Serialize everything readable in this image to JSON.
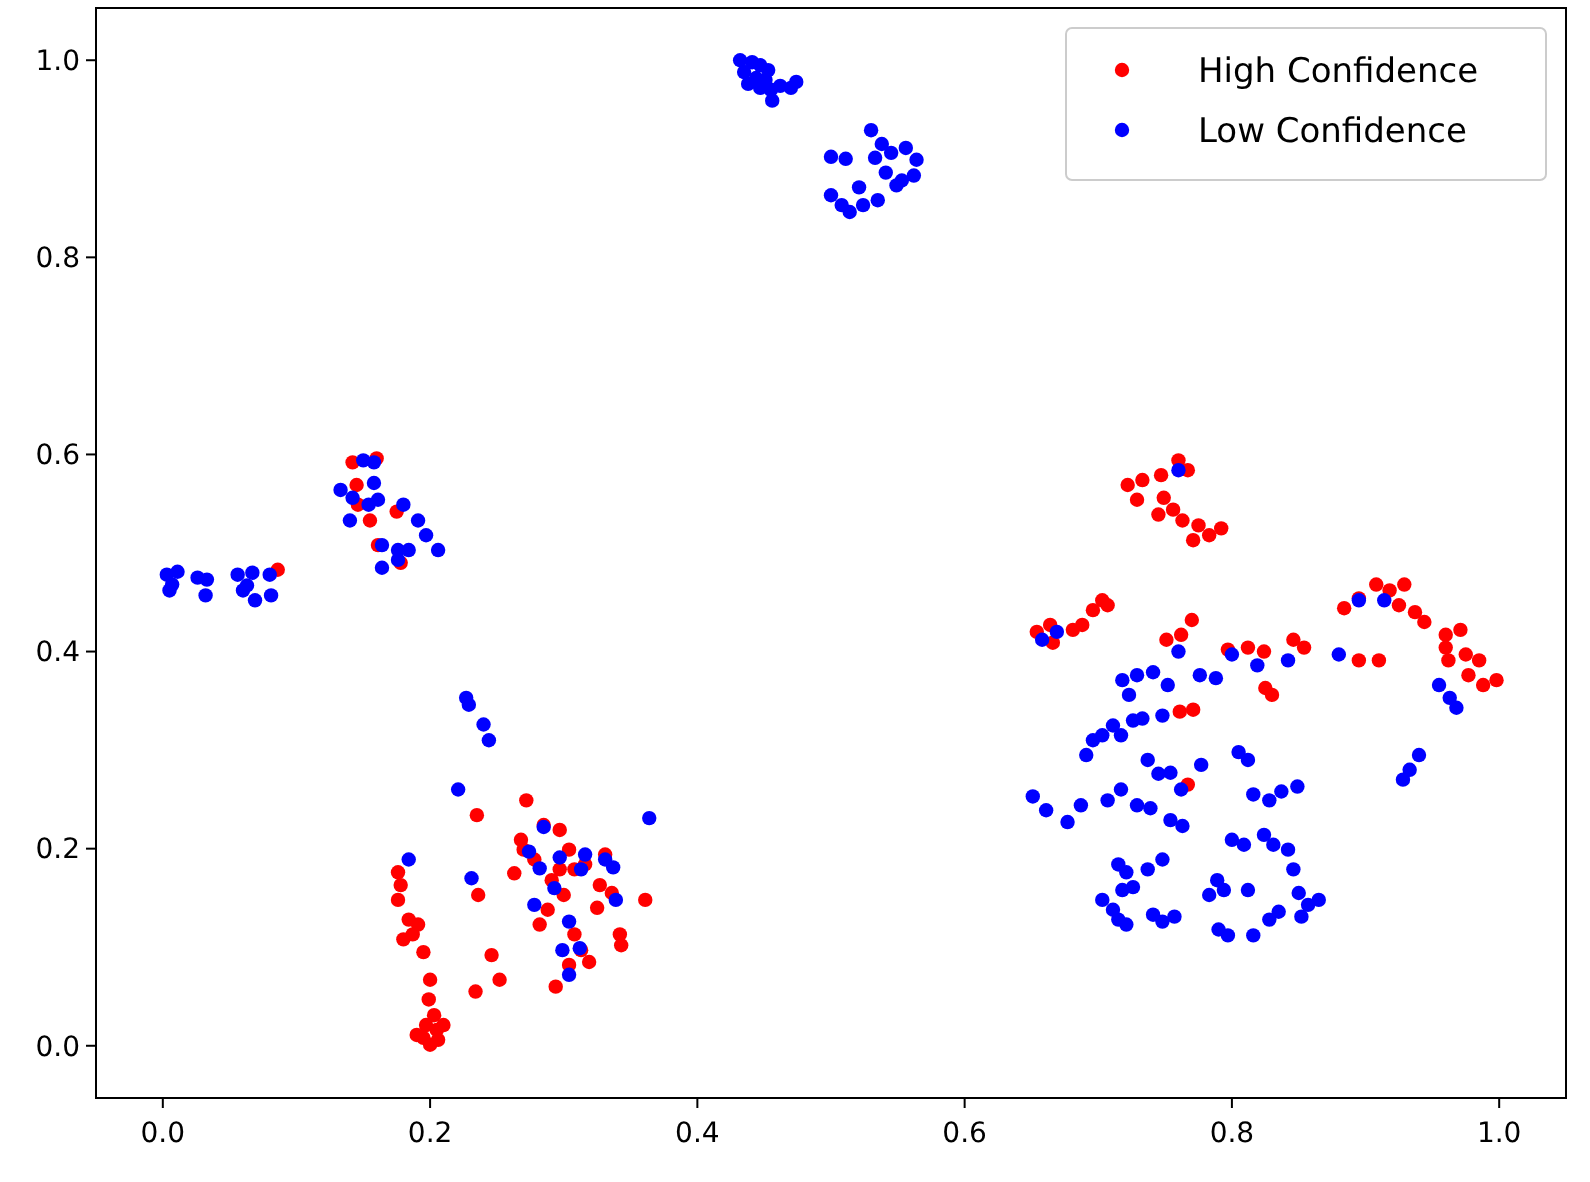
{
  "chart_data": {
    "type": "scatter",
    "xlim": [
      -0.05,
      1.05
    ],
    "ylim": [
      -0.053,
      1.053
    ],
    "xticks": [
      {
        "value": 0,
        "label": "0.0"
      },
      {
        "value": 0.2,
        "label": "0.2"
      },
      {
        "value": 0.4,
        "label": "0.4"
      },
      {
        "value": 0.6,
        "label": "0.6"
      },
      {
        "value": 0.8,
        "label": "0.8"
      },
      {
        "value": 1,
        "label": "1.0"
      }
    ],
    "yticks": [
      {
        "value": 0,
        "label": "0.0"
      },
      {
        "value": 0.2,
        "label": "0.2"
      },
      {
        "value": 0.4,
        "label": "0.4"
      },
      {
        "value": 0.6,
        "label": "0.6"
      },
      {
        "value": 0.8,
        "label": "0.8"
      },
      {
        "value": 1,
        "label": "1.0"
      }
    ],
    "grid": false,
    "legend": "top right",
    "marker": "circle",
    "series": [
      {
        "name": "High Confidence",
        "color": "#ff0000",
        "x": [
          0.142,
          0.16,
          0.145,
          0.146,
          0.161,
          0.178,
          0.155,
          0.175,
          0.086,
          0.176,
          0.178,
          0.176,
          0.184,
          0.191,
          0.18,
          0.187,
          0.195,
          0.2,
          0.199,
          0.203,
          0.197,
          0.205,
          0.195,
          0.206,
          0.2,
          0.19,
          0.21,
          0.235,
          0.236,
          0.246,
          0.252,
          0.234,
          0.272,
          0.263,
          0.268,
          0.285,
          0.297,
          0.304,
          0.291,
          0.288,
          0.282,
          0.3,
          0.308,
          0.316,
          0.331,
          0.327,
          0.336,
          0.325,
          0.308,
          0.313,
          0.319,
          0.304,
          0.294,
          0.342,
          0.343,
          0.361,
          0.297,
          0.278,
          0.27,
          0.722,
          0.733,
          0.729,
          0.747,
          0.76,
          0.767,
          0.749,
          0.756,
          0.745,
          0.763,
          0.775,
          0.771,
          0.783,
          0.792,
          0.654,
          0.664,
          0.666,
          0.681,
          0.688,
          0.696,
          0.703,
          0.707,
          0.751,
          0.762,
          0.77,
          0.771,
          0.761,
          0.767,
          0.797,
          0.812,
          0.824,
          0.825,
          0.83,
          0.846,
          0.854,
          0.884,
          0.895,
          0.908,
          0.918,
          0.929,
          0.925,
          0.937,
          0.944,
          0.895,
          0.91,
          0.96,
          0.971,
          0.962,
          0.975,
          0.985,
          0.977,
          0.988,
          0.998,
          0.96
        ],
        "values": [
          0.592,
          0.596,
          0.569,
          0.549,
          0.508,
          0.49,
          0.533,
          0.542,
          0.483,
          0.176,
          0.163,
          0.148,
          0.128,
          0.123,
          0.108,
          0.113,
          0.095,
          0.067,
          0.047,
          0.031,
          0.021,
          0.016,
          0.008,
          0.006,
          0.001,
          0.011,
          0.021,
          0.234,
          0.153,
          0.092,
          0.067,
          0.055,
          0.249,
          0.175,
          0.209,
          0.224,
          0.219,
          0.199,
          0.168,
          0.138,
          0.123,
          0.153,
          0.179,
          0.184,
          0.194,
          0.163,
          0.155,
          0.14,
          0.113,
          0.097,
          0.085,
          0.082,
          0.06,
          0.113,
          0.102,
          0.148,
          0.179,
          0.189,
          0.199,
          0.569,
          0.574,
          0.554,
          0.579,
          0.594,
          0.584,
          0.556,
          0.544,
          0.539,
          0.533,
          0.528,
          0.513,
          0.518,
          0.525,
          0.42,
          0.427,
          0.409,
          0.422,
          0.427,
          0.442,
          0.452,
          0.447,
          0.412,
          0.417,
          0.432,
          0.341,
          0.339,
          0.265,
          0.402,
          0.404,
          0.4,
          0.363,
          0.356,
          0.412,
          0.404,
          0.444,
          0.454,
          0.468,
          0.462,
          0.468,
          0.447,
          0.44,
          0.43,
          0.391,
          0.391,
          0.417,
          0.422,
          0.391,
          0.397,
          0.391,
          0.376,
          0.366,
          0.371,
          0.404
        ]
      },
      {
        "name": "Low Confidence",
        "color": "#0000ff",
        "x": [
          0.003,
          0.007,
          0.011,
          0.005,
          0.026,
          0.033,
          0.032,
          0.056,
          0.06,
          0.067,
          0.069,
          0.063,
          0.08,
          0.081,
          0.15,
          0.158,
          0.133,
          0.142,
          0.14,
          0.158,
          0.154,
          0.161,
          0.18,
          0.164,
          0.176,
          0.184,
          0.164,
          0.191,
          0.197,
          0.206,
          0.176,
          0.432,
          0.441,
          0.447,
          0.435,
          0.444,
          0.451,
          0.455,
          0.462,
          0.47,
          0.474,
          0.447,
          0.456,
          0.438,
          0.453,
          0.5,
          0.511,
          0.5,
          0.508,
          0.514,
          0.521,
          0.524,
          0.53,
          0.538,
          0.533,
          0.545,
          0.541,
          0.553,
          0.556,
          0.564,
          0.562,
          0.535,
          0.549,
          0.184,
          0.229,
          0.227,
          0.24,
          0.244,
          0.221,
          0.231,
          0.274,
          0.282,
          0.285,
          0.293,
          0.297,
          0.304,
          0.316,
          0.313,
          0.331,
          0.337,
          0.339,
          0.299,
          0.312,
          0.304,
          0.278,
          0.364,
          0.658,
          0.669,
          0.76,
          0.76,
          0.8,
          0.819,
          0.842,
          0.88,
          0.895,
          0.914,
          0.955,
          0.963,
          0.968,
          0.94,
          0.933,
          0.928,
          0.718,
          0.729,
          0.741,
          0.752,
          0.723,
          0.776,
          0.788,
          0.691,
          0.696,
          0.703,
          0.711,
          0.717,
          0.726,
          0.733,
          0.748,
          0.737,
          0.745,
          0.754,
          0.762,
          0.777,
          0.805,
          0.812,
          0.651,
          0.661,
          0.677,
          0.687,
          0.707,
          0.717,
          0.729,
          0.739,
          0.754,
          0.763,
          0.8,
          0.809,
          0.824,
          0.831,
          0.842,
          0.816,
          0.828,
          0.837,
          0.849,
          0.715,
          0.721,
          0.718,
          0.726,
          0.703,
          0.711,
          0.715,
          0.721,
          0.737,
          0.748,
          0.741,
          0.748,
          0.757,
          0.789,
          0.794,
          0.783,
          0.79,
          0.797,
          0.816,
          0.828,
          0.835,
          0.812,
          0.846,
          0.85,
          0.857,
          0.865,
          0.852
        ],
        "values": [
          0.478,
          0.468,
          0.481,
          0.462,
          0.475,
          0.473,
          0.457,
          0.478,
          0.462,
          0.48,
          0.452,
          0.467,
          0.478,
          0.457,
          0.594,
          0.592,
          0.564,
          0.556,
          0.533,
          0.571,
          0.549,
          0.554,
          0.549,
          0.508,
          0.503,
          0.503,
          0.485,
          0.533,
          0.518,
          0.503,
          0.493,
          1.0,
          0.998,
          0.995,
          0.988,
          0.982,
          0.98,
          0.97,
          0.974,
          0.972,
          0.978,
          0.972,
          0.959,
          0.976,
          0.99,
          0.902,
          0.9,
          0.863,
          0.853,
          0.846,
          0.871,
          0.853,
          0.929,
          0.915,
          0.901,
          0.906,
          0.886,
          0.878,
          0.911,
          0.899,
          0.883,
          0.858,
          0.873,
          0.189,
          0.346,
          0.353,
          0.326,
          0.31,
          0.26,
          0.17,
          0.197,
          0.18,
          0.222,
          0.16,
          0.191,
          0.126,
          0.194,
          0.179,
          0.189,
          0.181,
          0.148,
          0.097,
          0.099,
          0.072,
          0.143,
          0.231,
          0.412,
          0.42,
          0.584,
          0.4,
          0.397,
          0.386,
          0.391,
          0.397,
          0.452,
          0.452,
          0.366,
          0.353,
          0.343,
          0.295,
          0.28,
          0.27,
          0.371,
          0.376,
          0.379,
          0.366,
          0.356,
          0.376,
          0.373,
          0.295,
          0.31,
          0.315,
          0.325,
          0.315,
          0.33,
          0.332,
          0.335,
          0.29,
          0.276,
          0.277,
          0.26,
          0.285,
          0.298,
          0.29,
          0.253,
          0.239,
          0.227,
          0.244,
          0.249,
          0.26,
          0.244,
          0.241,
          0.229,
          0.223,
          0.209,
          0.204,
          0.214,
          0.204,
          0.199,
          0.255,
          0.249,
          0.258,
          0.263,
          0.184,
          0.176,
          0.158,
          0.161,
          0.148,
          0.138,
          0.128,
          0.123,
          0.179,
          0.189,
          0.133,
          0.126,
          0.131,
          0.168,
          0.158,
          0.153,
          0.118,
          0.112,
          0.112,
          0.128,
          0.136,
          0.158,
          0.179,
          0.155,
          0.143,
          0.148,
          0.131
        ]
      }
    ]
  }
}
